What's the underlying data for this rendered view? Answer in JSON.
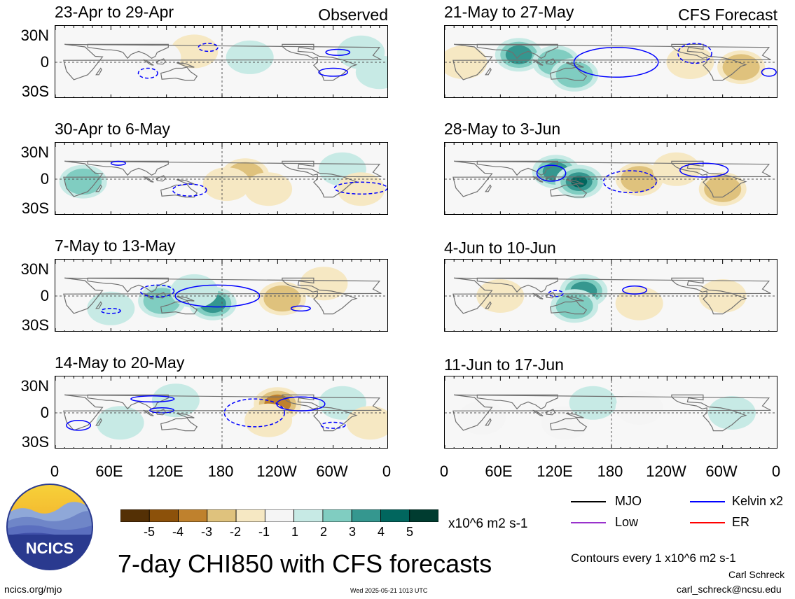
{
  "headers": {
    "left": "Observed",
    "right": "CFS Forecast"
  },
  "panels": [
    {
      "title": "23-Apr to 29-Apr",
      "source": "observed"
    },
    {
      "title": "30-Apr to 6-May",
      "source": "observed"
    },
    {
      "title": "7-May to 13-May",
      "source": "observed"
    },
    {
      "title": "14-May to 20-May",
      "source": "observed"
    },
    {
      "title": "21-May to 27-May",
      "source": "forecast"
    },
    {
      "title": "28-May to 3-Jun",
      "source": "forecast"
    },
    {
      "title": "4-Jun to 10-Jun",
      "source": "forecast"
    },
    {
      "title": "11-Jun to 17-Jun",
      "source": "forecast"
    }
  ],
  "lat_labels": [
    "30N",
    "0",
    "30S"
  ],
  "lon_labels": [
    "0",
    "60E",
    "120E",
    "180",
    "120W",
    "60W",
    "0"
  ],
  "colorbar": {
    "labels": [
      "-5",
      "-4",
      "-3",
      "-2",
      "-1",
      "1",
      "2",
      "3",
      "4",
      "5"
    ],
    "colors": [
      "#543005",
      "#8c510a",
      "#bf812d",
      "#dfc27d",
      "#f6e8c3",
      "#f5f5f5",
      "#c7eae5",
      "#80cdc1",
      "#35978f",
      "#01665e",
      "#003c30"
    ],
    "unit": "x10^6 m2 s-1"
  },
  "legend": [
    {
      "label": "MJO",
      "color": "#000000"
    },
    {
      "label": "Kelvin x2",
      "color": "#0000ff"
    },
    {
      "label": "Low",
      "color": "#9932cc"
    },
    {
      "label": "ER",
      "color": "#ff0000"
    }
  ],
  "title": "7-day CHI850 with CFS forecasts",
  "contours_note": "Contours every 1 x10^6 m2 s-1",
  "author": "Carl Schreck",
  "email": "carl_schreck@ncsu.edu",
  "website": "ncics.org/mjo",
  "timestamp": "Wed 2025-05-21 1013 UTC",
  "logo_text": "NCICS",
  "chart_data": {
    "type": "heatmap",
    "variable": "7-day CHI850 anomaly",
    "units": "x10^6 m2 s-1",
    "x_ticks": [
      "0",
      "60E",
      "120E",
      "180",
      "120W",
      "60W",
      "0"
    ],
    "y_ticks": [
      "30N",
      "0",
      "30S"
    ],
    "color_levels": [
      -5,
      -4,
      -3,
      -2,
      -1,
      1,
      2,
      3,
      4,
      5
    ],
    "contour_interval": 1,
    "blobs": [
      {
        "panel": 0,
        "lon": 150,
        "lat": 22,
        "value": -1.5
      },
      {
        "panel": 0,
        "lon": 110,
        "lat": 10,
        "value": -1
      },
      {
        "panel": 0,
        "lon": 210,
        "lat": 10,
        "value": 1.2
      },
      {
        "panel": 0,
        "lon": 330,
        "lat": 20,
        "value": 1.2
      },
      {
        "panel": 0,
        "lon": 350,
        "lat": -20,
        "value": 1
      },
      {
        "panel": 1,
        "lon": 30,
        "lat": -5,
        "value": 2
      },
      {
        "panel": 1,
        "lon": 205,
        "lat": 8,
        "value": -2.3
      },
      {
        "panel": 1,
        "lon": 185,
        "lat": -10,
        "value": -1.8
      },
      {
        "panel": 1,
        "lon": 230,
        "lat": -20,
        "value": -1.5
      },
      {
        "panel": 1,
        "lon": 310,
        "lat": 20,
        "value": 1.3
      },
      {
        "panel": 1,
        "lon": 330,
        "lat": -20,
        "value": -1.5
      },
      {
        "panel": 2,
        "lon": 115,
        "lat": -10,
        "value": 2
      },
      {
        "panel": 2,
        "lon": 170,
        "lat": -15,
        "value": 3.3
      },
      {
        "panel": 2,
        "lon": 150,
        "lat": 10,
        "value": 1.5
      },
      {
        "panel": 2,
        "lon": 245,
        "lat": -5,
        "value": -2.5
      },
      {
        "panel": 2,
        "lon": 290,
        "lat": 25,
        "value": -1.5
      },
      {
        "panel": 2,
        "lon": 60,
        "lat": -25,
        "value": 1.3
      },
      {
        "panel": 3,
        "lon": 240,
        "lat": 18,
        "value": -3.5
      },
      {
        "panel": 3,
        "lon": 230,
        "lat": -15,
        "value": -2
      },
      {
        "panel": 3,
        "lon": 130,
        "lat": 25,
        "value": 1.5
      },
      {
        "panel": 3,
        "lon": 310,
        "lat": 20,
        "value": 1.5
      },
      {
        "panel": 3,
        "lon": 70,
        "lat": -20,
        "value": 1.2
      },
      {
        "panel": 3,
        "lon": 340,
        "lat": -20,
        "value": -1.5
      },
      {
        "panel": 4,
        "lon": 80,
        "lat": 15,
        "value": 3
      },
      {
        "panel": 4,
        "lon": 120,
        "lat": 0,
        "value": 2.8
      },
      {
        "panel": 4,
        "lon": 140,
        "lat": -25,
        "value": 2.2
      },
      {
        "panel": 4,
        "lon": 265,
        "lat": 0,
        "value": -1.6
      },
      {
        "panel": 4,
        "lon": 320,
        "lat": -10,
        "value": -2.5
      },
      {
        "panel": 4,
        "lon": 20,
        "lat": 0,
        "value": -1.3
      },
      {
        "panel": 5,
        "lon": 120,
        "lat": 15,
        "value": 3.2
      },
      {
        "panel": 5,
        "lon": 145,
        "lat": -5,
        "value": 4.2
      },
      {
        "panel": 5,
        "lon": 210,
        "lat": 0,
        "value": -3
      },
      {
        "panel": 5,
        "lon": 300,
        "lat": -20,
        "value": -2.5
      },
      {
        "panel": 5,
        "lon": 250,
        "lat": 20,
        "value": -1.5
      },
      {
        "panel": 6,
        "lon": 150,
        "lat": 10,
        "value": 3
      },
      {
        "panel": 6,
        "lon": 140,
        "lat": -20,
        "value": 2
      },
      {
        "panel": 6,
        "lon": 60,
        "lat": 0,
        "value": -1.2
      },
      {
        "panel": 6,
        "lon": 210,
        "lat": -15,
        "value": -1.2
      },
      {
        "panel": 6,
        "lon": 300,
        "lat": 0,
        "value": -1.2
      },
      {
        "panel": 7,
        "lon": 40,
        "lat": -10,
        "value": -1
      },
      {
        "panel": 7,
        "lon": 130,
        "lat": -20,
        "value": -1
      },
      {
        "panel": 7,
        "lon": 160,
        "lat": 20,
        "value": 1.1
      },
      {
        "panel": 7,
        "lon": 310,
        "lat": 0,
        "value": 1.1
      },
      {
        "panel": 7,
        "lon": 210,
        "lat": 10,
        "value": -1
      }
    ]
  }
}
